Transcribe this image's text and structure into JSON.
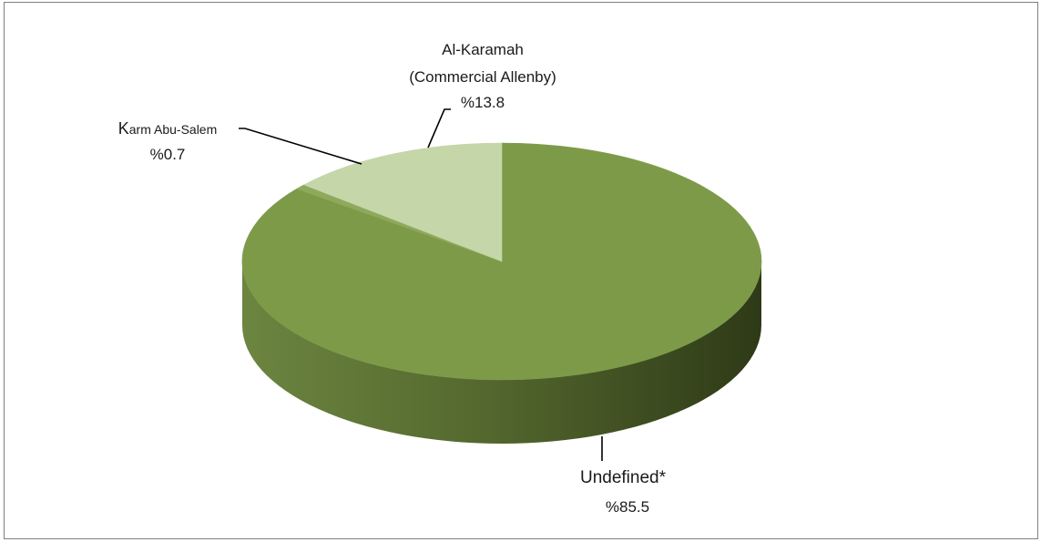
{
  "chart_data": {
    "type": "pie",
    "variant": "3d",
    "start_angle_deg": -90,
    "direction": "clockwise",
    "slices": [
      {
        "label_parts": [
          "Undefined*"
        ],
        "value": 85.5,
        "value_label": "%85.5",
        "color": "#7d9a49"
      },
      {
        "label_parts": [
          "K",
          "arm Abu-Salem"
        ],
        "value": 0.7,
        "value_label": "%0.7",
        "color": "#8fa95c"
      },
      {
        "label_parts": [
          "Al-Karamah",
          "(Commercial Allenby)"
        ],
        "value": 13.8,
        "value_label": "%13.8",
        "color": "#c5d6a9"
      }
    ],
    "side_colors": {
      "light": "#6c8540",
      "dark": "#2e3a17"
    },
    "legend": "none",
    "title": ""
  }
}
